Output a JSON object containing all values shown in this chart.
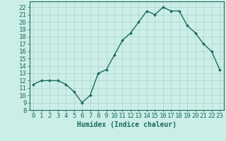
{
  "x": [
    0,
    1,
    2,
    3,
    4,
    5,
    6,
    7,
    8,
    9,
    10,
    11,
    12,
    13,
    14,
    15,
    16,
    17,
    18,
    19,
    20,
    21,
    22,
    23
  ],
  "y": [
    11.5,
    12.0,
    12.0,
    12.0,
    11.5,
    10.5,
    9.0,
    10.0,
    13.0,
    13.5,
    15.5,
    17.5,
    18.5,
    20.0,
    21.5,
    21.0,
    22.0,
    21.5,
    21.5,
    19.5,
    18.5,
    17.0,
    16.0,
    13.5
  ],
  "line_color": "#1a6b5a",
  "marker": "D",
  "marker_size": 2.0,
  "line_width": 1.0,
  "xlabel": "Humidex (Indice chaleur)",
  "ylabel_ticks": [
    8,
    9,
    10,
    11,
    12,
    13,
    14,
    15,
    16,
    17,
    18,
    19,
    20,
    21,
    22
  ],
  "xlim": [
    -0.5,
    23.5
  ],
  "ylim": [
    8,
    22.8
  ],
  "background_color": "#cceee8",
  "grid_color": "#aad4cc",
  "xlabel_fontsize": 7,
  "tick_fontsize": 6.5
}
